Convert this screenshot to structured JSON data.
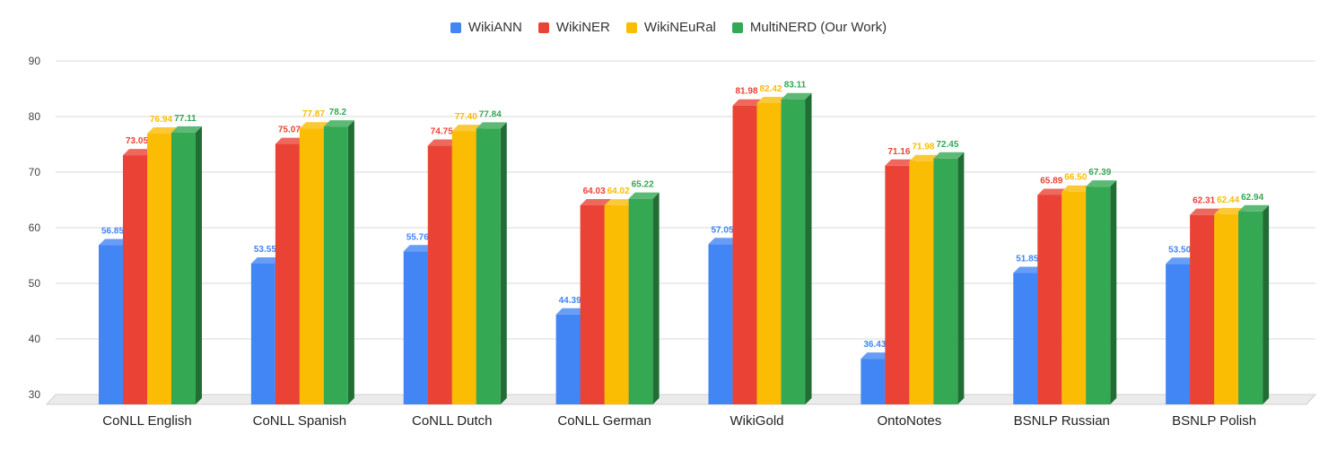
{
  "chart_data": {
    "type": "bar",
    "title": "",
    "xlabel": "",
    "ylabel": "",
    "ylim": [
      30,
      90
    ],
    "yticks": [
      30,
      40,
      50,
      60,
      70,
      80,
      90
    ],
    "legend_position": "top-center",
    "grid": true,
    "categories": [
      "CoNLL English",
      "CoNLL Spanish",
      "CoNLL Dutch",
      "CoNLL German",
      "WikiGold",
      "OntoNotes",
      "BSNLP Russian",
      "BSNLP Polish"
    ],
    "series": [
      {
        "name": "WikiANN",
        "color": "#4285f4",
        "values": [
          56.85,
          53.55,
          55.76,
          44.39,
          57.05,
          36.43,
          51.85,
          53.5
        ],
        "labels": [
          "56.85",
          "53.55",
          "55.76",
          "44.39",
          "57.05",
          "36.43",
          "51.85",
          "53.50"
        ]
      },
      {
        "name": "WikiNER",
        "color": "#ea4335",
        "values": [
          73.05,
          75.07,
          74.75,
          64.03,
          81.98,
          71.16,
          65.89,
          62.31
        ],
        "labels": [
          "73.05",
          "75.07",
          "74.75",
          "64.03",
          "81.98",
          "71.16",
          "65.89",
          "62.31"
        ]
      },
      {
        "name": "WikiNEuRal",
        "color": "#fbbc04",
        "values": [
          76.94,
          77.87,
          77.4,
          64.02,
          82.42,
          71.98,
          66.5,
          62.44
        ],
        "labels": [
          "76.94",
          "77.87",
          "77.40",
          "64.02",
          "82.42",
          "71.98",
          "66.50",
          "62.44"
        ]
      },
      {
        "name": "MultiNERD (Our Work)",
        "color": "#34a853",
        "values": [
          77.11,
          78.2,
          77.84,
          65.22,
          83.11,
          72.45,
          67.39,
          62.94
        ],
        "labels": [
          "77.11",
          "78.2",
          "77.84",
          "65.22",
          "83.11",
          "72.45",
          "67.39",
          "62.94"
        ]
      }
    ]
  }
}
